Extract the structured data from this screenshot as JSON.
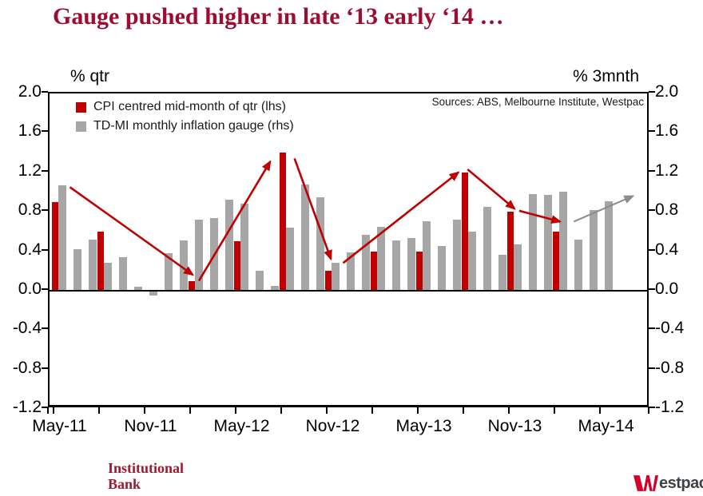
{
  "title": "Gauge pushed higher in late ‘13 early ‘14 …",
  "axes": {
    "left_unit": "% qtr",
    "right_unit": "% 3mnth",
    "y_ticks": [
      "2.0",
      "1.6",
      "1.2",
      "0.8",
      "0.4",
      "0.0",
      "-0.4",
      "-0.8",
      "-1.2"
    ],
    "x_labels": [
      "May-11",
      "Nov-11",
      "May-12",
      "Nov-12",
      "May-13",
      "Nov-13",
      "May-14"
    ]
  },
  "legend": [
    {
      "label": "CPI centred mid-month of qtr (lhs)",
      "color": "#c00000"
    },
    {
      "label": "TD-MI monthly inflation gauge (rhs)",
      "color": "#a6a6a6"
    }
  ],
  "sources": "Sources: ABS, Melbourne Institute, Westpac",
  "footer": {
    "institutional_line1": "Institutional",
    "institutional_line2": "Bank",
    "westpac_text": "estpac",
    "brand_red": "#d5002b"
  },
  "chart_data": {
    "type": "bar",
    "title": "Gauge pushed higher in late ‘13 early ‘14 …",
    "categories": [
      "May-11",
      "Jun-11",
      "Jul-11",
      "Aug-11",
      "Sep-11",
      "Oct-11",
      "Nov-11",
      "Dec-11",
      "Jan-12",
      "Feb-12",
      "Mar-12",
      "Apr-12",
      "May-12",
      "Jun-12",
      "Jul-12",
      "Aug-12",
      "Sep-12",
      "Oct-12",
      "Nov-12",
      "Dec-12",
      "Jan-13",
      "Feb-13",
      "Mar-13",
      "Apr-13",
      "May-13",
      "Jun-13",
      "Jul-13",
      "Aug-13",
      "Sep-13",
      "Oct-13",
      "Nov-13",
      "Dec-13",
      "Jan-14",
      "Feb-14",
      "Mar-14",
      "Apr-14",
      "May-14"
    ],
    "series": [
      {
        "name": "CPI centred mid-month of qtr (lhs)",
        "axis": "left",
        "color": "#c00000",
        "values": [
          0.9,
          null,
          null,
          0.6,
          null,
          null,
          0.0,
          null,
          null,
          0.1,
          null,
          null,
          0.5,
          null,
          null,
          1.4,
          null,
          null,
          0.2,
          null,
          null,
          0.4,
          null,
          null,
          0.4,
          null,
          null,
          1.2,
          null,
          null,
          0.8,
          null,
          null,
          0.6,
          null,
          null,
          null
        ]
      },
      {
        "name": "TD-MI monthly inflation gauge (rhs)",
        "axis": "right",
        "color": "#a6a6a6",
        "values": [
          1.07,
          0.42,
          0.52,
          0.28,
          0.34,
          0.04,
          -0.05,
          0.38,
          0.51,
          0.72,
          0.74,
          0.92,
          0.88,
          0.2,
          0.05,
          0.64,
          1.08,
          0.95,
          0.28,
          0.39,
          0.57,
          0.65,
          0.51,
          0.53,
          0.7,
          0.45,
          0.72,
          0.6,
          0.85,
          0.36,
          0.47,
          0.98,
          0.97,
          1.0,
          0.52,
          0.82,
          0.91
        ]
      }
    ],
    "ylim": [
      -1.2,
      2.0
    ],
    "y_tick_step": 0.4,
    "x_tick_every_months": 3,
    "x_label_every_months": 6,
    "grid": false,
    "legend_position": "top-left-inside",
    "annotations": {
      "arrows": [
        {
          "color": "#c00000",
          "from": [
            1.0,
            1.05
          ],
          "to": [
            9.1,
            0.16
          ]
        },
        {
          "color": "#c00000",
          "from": [
            9.5,
            0.1
          ],
          "to": [
            14.2,
            1.31
          ]
        },
        {
          "color": "#c00000",
          "from": [
            15.8,
            1.34
          ],
          "to": [
            18.2,
            0.32
          ]
        },
        {
          "color": "#c00000",
          "from": [
            19.0,
            0.28
          ],
          "to": [
            26.6,
            1.2
          ]
        },
        {
          "color": "#c00000",
          "from": [
            27.2,
            1.23
          ],
          "to": [
            30.3,
            0.83
          ]
        },
        {
          "color": "#c00000",
          "from": [
            30.6,
            0.81
          ],
          "to": [
            33.3,
            0.7
          ]
        },
        {
          "color": "#8c8c8c",
          "from": [
            34.2,
            0.7
          ],
          "to": [
            38.1,
            0.96
          ]
        }
      ]
    }
  }
}
